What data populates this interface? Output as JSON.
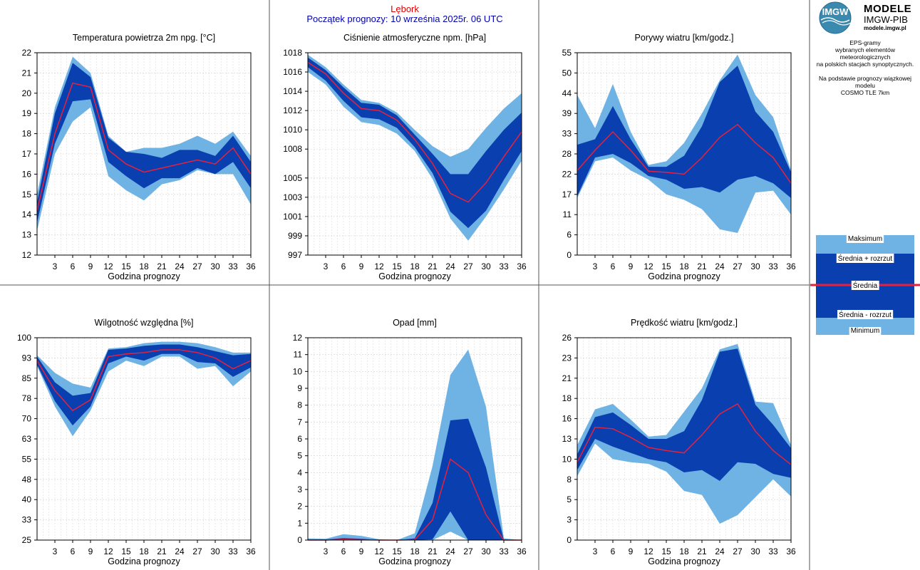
{
  "header": {
    "station": "Lębork",
    "forecast_start": "Początek prognozy: 10 września 2025r. 06 UTC"
  },
  "branding": {
    "logo_text": "IMGW",
    "title": "MODELE",
    "subtitle": "IMGW-PIB",
    "url": "modele.imgw.pl"
  },
  "description": [
    "EPS-gramy",
    "wybranych elementów meteorologicznych",
    "na polskich stacjach  synoptycznych.",
    "",
    "Na podstawie prognozy wiązkowej modelu",
    "COSMO TLE 7km"
  ],
  "legend": {
    "items": [
      "Maksimum",
      "Średnia + rozrzut",
      "Średnia",
      "Średnia - rozrzut",
      "Minimum"
    ]
  },
  "colors": {
    "light_band": "#6fb2e4",
    "dark_band": "#0a3fb0",
    "mean_line": "#e8203c",
    "grid": "#c8c8c8",
    "station": "#e00000",
    "start": "#0000b4"
  },
  "chart_data": [
    {
      "type": "area",
      "title": "Temperatura powietrza 2m npg. [°C]",
      "xlabel": "Godzina prognozy",
      "ylabel": "",
      "xlim": [
        0,
        36
      ],
      "ylim": [
        12,
        22
      ],
      "yticks": [
        "12",
        "13",
        "14",
        "15",
        "16",
        "17",
        "18",
        "19",
        "20",
        "21",
        "22"
      ],
      "yticks_values": [
        12,
        13,
        14,
        15,
        16,
        17,
        18,
        19,
        20,
        21,
        22
      ],
      "xticks": [
        3,
        6,
        9,
        12,
        15,
        18,
        21,
        24,
        27,
        30,
        33,
        36
      ],
      "x": [
        0,
        3,
        6,
        9,
        12,
        15,
        18,
        21,
        24,
        27,
        30,
        33,
        36
      ],
      "series": [
        {
          "name": "Maksimum",
          "values": [
            15.0,
            19.3,
            21.8,
            21.0,
            17.9,
            17.1,
            17.3,
            17.3,
            17.5,
            17.9,
            17.5,
            18.1,
            16.9
          ]
        },
        {
          "name": "Średnia + rozrzut",
          "values": [
            14.6,
            19.0,
            21.5,
            20.8,
            17.8,
            17.1,
            17.0,
            16.8,
            17.2,
            17.2,
            16.9,
            17.9,
            16.6
          ]
        },
        {
          "name": "Średnia",
          "values": [
            14.2,
            18.0,
            20.5,
            20.3,
            17.2,
            16.5,
            16.1,
            16.3,
            16.5,
            16.7,
            16.5,
            17.3,
            16.0
          ]
        },
        {
          "name": "Średnia - rozrzut",
          "values": [
            13.6,
            17.5,
            19.6,
            19.7,
            16.6,
            15.9,
            15.3,
            15.8,
            15.8,
            16.3,
            16.0,
            16.6,
            15.3
          ]
        },
        {
          "name": "Minimum",
          "values": [
            13.2,
            17.0,
            18.6,
            19.3,
            15.9,
            15.2,
            14.7,
            15.5,
            15.7,
            16.2,
            16.0,
            16.0,
            14.5
          ]
        }
      ]
    },
    {
      "type": "area",
      "title": "Ciśnienie atmosferyczne npm. [hPa]",
      "xlabel": "Godzina prognozy",
      "ylabel": "",
      "xlim": [
        0,
        36
      ],
      "ylim": [
        997,
        1018
      ],
      "yticks": [
        "997",
        "999",
        "1001",
        "1003",
        "1005",
        "1008",
        "1010",
        "1012",
        "1014",
        "1016",
        "1018"
      ],
      "yticks_values": [
        997,
        999,
        1001,
        1003,
        1005,
        1008,
        1010,
        1012,
        1014,
        1016,
        1018
      ],
      "xticks": [
        3,
        6,
        9,
        12,
        15,
        18,
        21,
        24,
        27,
        30,
        33,
        36
      ],
      "x": [
        0,
        3,
        6,
        9,
        12,
        15,
        18,
        21,
        24,
        27,
        30,
        33,
        36
      ],
      "series": [
        {
          "name": "Maksimum",
          "values": [
            1017.8,
            1016.5,
            1014.7,
            1013.1,
            1012.8,
            1011.8,
            1010.0,
            1008.3,
            1007.2,
            1008.0,
            1010.2,
            1012.2,
            1013.8
          ]
        },
        {
          "name": "Średnia + rozrzut",
          "values": [
            1017.5,
            1016.2,
            1014.4,
            1012.8,
            1012.6,
            1011.5,
            1009.5,
            1007.5,
            1005.4,
            1005.4,
            1007.8,
            1010.0,
            1011.8
          ]
        },
        {
          "name": "Średnia",
          "values": [
            1017.0,
            1015.8,
            1013.8,
            1012.2,
            1012.0,
            1011.0,
            1009.0,
            1006.5,
            1003.4,
            1002.5,
            1004.5,
            1007.2,
            1009.8
          ]
        },
        {
          "name": "Średnia - rozrzut",
          "values": [
            1016.5,
            1015.1,
            1013.0,
            1011.3,
            1011.1,
            1010.2,
            1008.2,
            1005.5,
            1001.5,
            999.8,
            1001.6,
            1004.8,
            1007.8
          ]
        },
        {
          "name": "Minimum",
          "values": [
            1016.0,
            1014.7,
            1012.4,
            1010.8,
            1010.5,
            1009.6,
            1007.8,
            1004.9,
            1000.8,
            998.5,
            1001.0,
            1003.8,
            1006.8
          ]
        }
      ]
    },
    {
      "type": "area",
      "title": "Porywy wiatru [km/godz.]",
      "xlabel": "Godzina prognozy",
      "ylabel": "",
      "xlim": [
        0,
        36
      ],
      "ylim": [
        0,
        55
      ],
      "yticks": [
        "0",
        "6",
        "11",
        "17",
        "22",
        "28",
        "33",
        "39",
        "44",
        "50",
        "55"
      ],
      "yticks_values": [
        0,
        5.5,
        11,
        16.5,
        22,
        27.5,
        33,
        38.5,
        44,
        49.5,
        55
      ],
      "xticks": [
        3,
        6,
        9,
        12,
        15,
        18,
        21,
        24,
        27,
        30,
        33,
        36
      ],
      "x": [
        0,
        3,
        6,
        9,
        12,
        15,
        18,
        21,
        24,
        27,
        30,
        33,
        36
      ],
      "series": [
        {
          "name": "Maksimum",
          "values": [
            43.5,
            34.5,
            46.5,
            33.5,
            24.5,
            25.5,
            30.5,
            38.5,
            47.5,
            54.5,
            43.5,
            37.5,
            23.0
          ]
        },
        {
          "name": "Średnia + rozrzut",
          "values": [
            30.0,
            31.5,
            40.5,
            31.5,
            24.0,
            24.0,
            27.0,
            35.0,
            47.0,
            51.5,
            39.0,
            33.5,
            22.5
          ]
        },
        {
          "name": "Średnia",
          "values": [
            23.0,
            28.5,
            33.5,
            28.5,
            22.8,
            22.5,
            22.0,
            26.5,
            32.0,
            35.5,
            30.5,
            26.5,
            19.5
          ]
        },
        {
          "name": "Średnia - rozrzut",
          "values": [
            16.0,
            26.5,
            27.5,
            25.0,
            21.5,
            20.5,
            18.0,
            18.5,
            17.0,
            20.5,
            21.5,
            19.5,
            15.5
          ]
        },
        {
          "name": "Minimum",
          "values": [
            15.5,
            25.5,
            26.5,
            23.0,
            20.5,
            16.5,
            15.0,
            12.5,
            7.0,
            6.0,
            17.0,
            17.5,
            11.0
          ]
        }
      ]
    },
    {
      "type": "area",
      "title": "Wilgotność względna [%]",
      "xlabel": "Godzina prognozy",
      "ylabel": "",
      "xlim": [
        0,
        36
      ],
      "ylim": [
        25,
        100
      ],
      "yticks": [
        "25",
        "33",
        "40",
        "48",
        "55",
        "63",
        "70",
        "78",
        "85",
        "93",
        "100"
      ],
      "yticks_values": [
        25,
        32.5,
        40,
        47.5,
        55,
        62.5,
        70,
        77.5,
        85,
        92.5,
        100
      ],
      "xticks": [
        3,
        6,
        9,
        12,
        15,
        18,
        21,
        24,
        27,
        30,
        33,
        36
      ],
      "x": [
        0,
        3,
        6,
        9,
        12,
        15,
        18,
        21,
        24,
        27,
        30,
        33,
        36
      ],
      "series": [
        {
          "name": "Maksimum",
          "values": [
            93.5,
            87.0,
            83.0,
            81.5,
            96.0,
            96.5,
            98.0,
            98.5,
            98.5,
            98.0,
            96.5,
            94.5,
            94.5
          ]
        },
        {
          "name": "Średnia + rozrzut",
          "values": [
            93.0,
            83.5,
            78.5,
            79.5,
            95.5,
            96.0,
            97.0,
            97.5,
            97.5,
            96.5,
            95.0,
            93.5,
            94.0
          ]
        },
        {
          "name": "Średnia",
          "values": [
            91.5,
            80.5,
            73.0,
            77.0,
            93.0,
            94.0,
            94.5,
            95.5,
            95.5,
            94.5,
            92.5,
            88.5,
            91.5
          ]
        },
        {
          "name": "Średnia - rozrzut",
          "values": [
            90.0,
            76.5,
            67.5,
            74.5,
            90.5,
            93.0,
            91.5,
            94.0,
            94.0,
            91.0,
            90.5,
            85.5,
            89.0
          ]
        },
        {
          "name": "Minimum",
          "values": [
            89.5,
            74.5,
            63.5,
            73.0,
            87.5,
            91.5,
            89.5,
            93.0,
            93.0,
            88.5,
            89.5,
            82.0,
            87.5
          ]
        }
      ]
    },
    {
      "type": "area",
      "title": "Opad [mm]",
      "xlabel": "Godzina prognozy",
      "ylabel": "",
      "xlim": [
        0,
        36
      ],
      "ylim": [
        0,
        12
      ],
      "yticks": [
        "0",
        "1",
        "2",
        "3",
        "4",
        "5",
        "6",
        "7",
        "8",
        "9",
        "10",
        "11",
        "12"
      ],
      "yticks_values": [
        0,
        1,
        2,
        3,
        4,
        5,
        6,
        7,
        8,
        9,
        10,
        11,
        12
      ],
      "xticks": [
        3,
        6,
        9,
        12,
        15,
        18,
        21,
        24,
        27,
        30,
        33,
        36
      ],
      "x": [
        0,
        3,
        6,
        9,
        12,
        15,
        18,
        21,
        24,
        27,
        30,
        33,
        36
      ],
      "series": [
        {
          "name": "Maksimum",
          "values": [
            0.1,
            0.08,
            0.35,
            0.25,
            0.05,
            0.0,
            0.4,
            4.4,
            9.8,
            11.3,
            7.9,
            0.1,
            0.0
          ]
        },
        {
          "name": "Średnia + rozrzut",
          "values": [
            0.03,
            0.03,
            0.12,
            0.08,
            0.0,
            0.0,
            0.1,
            2.2,
            7.1,
            7.2,
            4.3,
            0.0,
            0.0
          ]
        },
        {
          "name": "Średnia",
          "values": [
            0.0,
            0.0,
            0.05,
            0.02,
            0.0,
            0.0,
            0.02,
            1.2,
            4.8,
            4.0,
            1.5,
            0.0,
            0.0
          ]
        },
        {
          "name": "Średnia - rozrzut",
          "values": [
            0.0,
            0.0,
            0.0,
            0.0,
            0.0,
            0.0,
            0.0,
            0.05,
            1.7,
            0.0,
            0.0,
            0.0,
            0.0
          ]
        },
        {
          "name": "Minimum",
          "values": [
            0.0,
            0.0,
            0.0,
            0.0,
            0.0,
            0.0,
            0.0,
            0.0,
            0.5,
            0.0,
            0.0,
            0.0,
            0.0
          ]
        }
      ]
    },
    {
      "type": "area",
      "title": "Prędkość wiatru [km/godz.]",
      "xlabel": "Godzina prognozy",
      "ylabel": "",
      "xlim": [
        0,
        36
      ],
      "ylim": [
        0,
        26
      ],
      "yticks": [
        "0",
        "3",
        "5",
        "8",
        "10",
        "13",
        "16",
        "18",
        "21",
        "23",
        "26"
      ],
      "yticks_values": [
        0,
        2.6,
        5.2,
        7.8,
        10.4,
        13,
        15.6,
        18.2,
        20.8,
        23.4,
        26
      ],
      "xticks": [
        3,
        6,
        9,
        12,
        15,
        18,
        21,
        24,
        27,
        30,
        33,
        36
      ],
      "x": [
        0,
        3,
        6,
        9,
        12,
        15,
        18,
        21,
        24,
        27,
        30,
        33,
        36
      ],
      "series": [
        {
          "name": "Maksimum",
          "values": [
            12.2,
            16.8,
            17.5,
            15.5,
            13.3,
            13.5,
            16.5,
            19.5,
            24.5,
            25.2,
            17.8,
            17.6,
            12.2
          ]
        },
        {
          "name": "Średnia + rozrzut",
          "values": [
            11.0,
            15.8,
            16.4,
            14.8,
            13.0,
            13.0,
            14.0,
            18.0,
            24.2,
            24.6,
            17.4,
            14.8,
            11.8
          ]
        },
        {
          "name": "Średnia",
          "values": [
            10.0,
            14.5,
            14.3,
            13.2,
            11.9,
            11.5,
            11.2,
            13.5,
            16.2,
            17.5,
            14.0,
            11.5,
            9.7
          ]
        },
        {
          "name": "Średnia - rozrzut",
          "values": [
            9.0,
            13.0,
            12.0,
            11.2,
            10.4,
            10.0,
            8.7,
            9.0,
            7.6,
            10.0,
            9.8,
            8.5,
            8.0
          ]
        },
        {
          "name": "Minimum",
          "values": [
            8.2,
            12.4,
            10.4,
            10.0,
            9.8,
            8.8,
            6.3,
            5.8,
            2.1,
            3.2,
            5.5,
            7.8,
            5.6
          ]
        }
      ]
    }
  ]
}
